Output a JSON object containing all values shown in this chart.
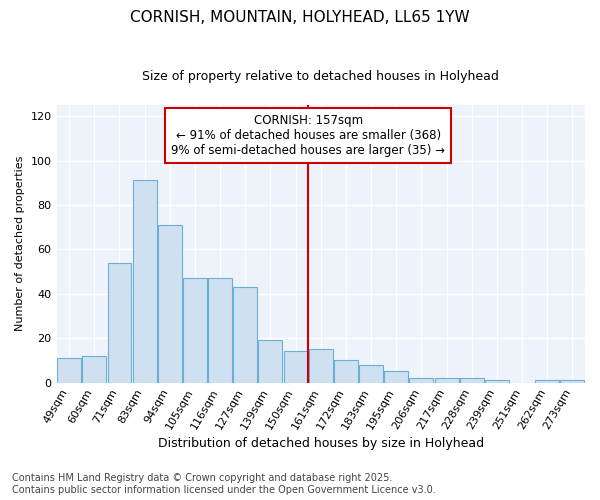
{
  "title": "CORNISH, MOUNTAIN, HOLYHEAD, LL65 1YW",
  "subtitle": "Size of property relative to detached houses in Holyhead",
  "xlabel": "Distribution of detached houses by size in Holyhead",
  "ylabel": "Number of detached properties",
  "categories": [
    "49sqm",
    "60sqm",
    "71sqm",
    "83sqm",
    "94sqm",
    "105sqm",
    "116sqm",
    "127sqm",
    "139sqm",
    "150sqm",
    "161sqm",
    "172sqm",
    "183sqm",
    "195sqm",
    "206sqm",
    "217sqm",
    "228sqm",
    "239sqm",
    "251sqm",
    "262sqm",
    "273sqm"
  ],
  "values": [
    11,
    12,
    54,
    91,
    71,
    47,
    47,
    43,
    19,
    14,
    15,
    10,
    8,
    5,
    2,
    2,
    2,
    1,
    0,
    1,
    1
  ],
  "bar_color": "#cfe0f0",
  "bar_edgecolor": "#6baed6",
  "ref_line_index": 10,
  "ref_line_color": "#cc0000",
  "annotation_title": "CORNISH: 157sqm",
  "annotation_line1": "← 91% of detached houses are smaller (368)",
  "annotation_line2": "9% of semi-detached houses are larger (35) →",
  "ylim": [
    0,
    125
  ],
  "yticks": [
    0,
    20,
    40,
    60,
    80,
    100,
    120
  ],
  "footer_line1": "Contains HM Land Registry data © Crown copyright and database right 2025.",
  "footer_line2": "Contains public sector information licensed under the Open Government Licence v3.0.",
  "bg_color": "#eef2fb",
  "title_fontsize": 11,
  "subtitle_fontsize": 9,
  "xlabel_fontsize": 9,
  "ylabel_fontsize": 8,
  "tick_fontsize": 8,
  "annotation_fontsize": 8.5,
  "footer_fontsize": 7
}
